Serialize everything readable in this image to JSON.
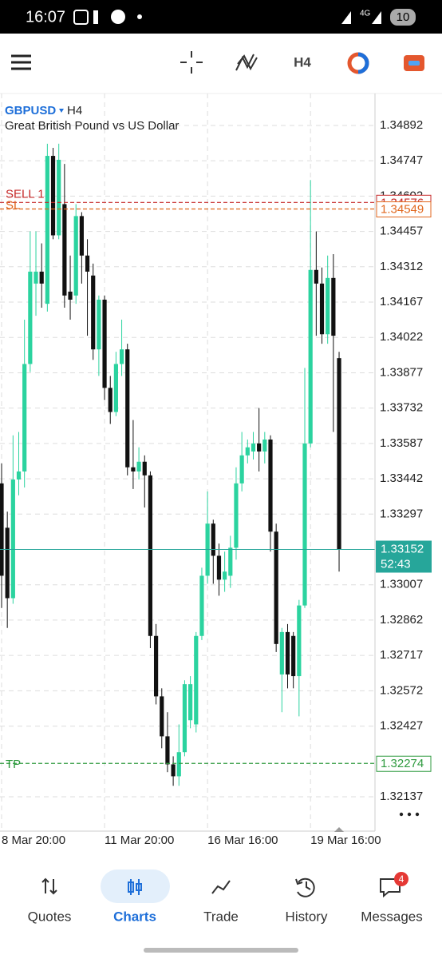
{
  "status_bar": {
    "time": "16:07",
    "network": "4G",
    "battery": 10
  },
  "toolbar": {
    "timeframe": "H4"
  },
  "chart_data": {
    "type": "candlestick",
    "symbol": "GBPUSD",
    "timeframe": "H4",
    "subtitle": "Great British Pound vs US Dollar",
    "categories": [
      "8 Mar 20:00",
      null,
      null,
      null,
      null,
      null,
      null,
      null,
      null,
      null,
      null,
      null,
      null,
      null,
      null,
      null,
      null,
      null,
      "11 Mar 20:00",
      null,
      null,
      null,
      null,
      null,
      null,
      null,
      null,
      null,
      null,
      null,
      null,
      null,
      null,
      null,
      null,
      null,
      "16 Mar 16:00",
      null,
      null,
      null,
      null,
      null,
      null,
      null,
      null,
      null,
      null,
      null,
      null,
      null,
      null,
      null,
      null,
      null,
      "19 Mar 16:00",
      null,
      null,
      null,
      null,
      null
    ],
    "open": [
      1.33423,
      1.33241,
      1.32952,
      1.33439,
      1.33472,
      1.33913,
      1.34243,
      1.34292,
      1.3416,
      1.34767,
      1.34441,
      1.34569,
      1.3421,
      1.34194,
      1.3452,
      1.34358,
      1.34276,
      1.33973,
      1.34177,
      1.33815,
      1.33716,
      1.33913,
      1.33973,
      1.33489,
      1.33472,
      1.33512,
      1.33456,
      1.32797,
      1.32549,
      1.32385,
      1.3227,
      1.32221,
      1.3232,
      1.32451,
      1.32434,
      1.32797,
      1.33044,
      1.33258,
      1.33126,
      1.33028,
      1.33044,
      1.33159,
      1.33423,
      1.33538,
      1.33554,
      1.33587,
      1.33554,
      1.33603,
      1.33225,
      1.32639,
      1.32813,
      1.32797,
      1.32632,
      1.32922,
      1.33587,
      1.34299,
      1.34243,
      1.34035,
      1.34266,
      1.33937
    ],
    "high": [
      1.33505,
      1.33307,
      1.3362,
      1.33634,
      1.34095,
      1.34457,
      1.34457,
      1.34408,
      1.34817,
      1.348,
      1.34817,
      1.34734,
      1.34358,
      1.34569,
      1.34536,
      1.34425,
      1.34325,
      1.34194,
      1.34194,
      1.33864,
      1.33963,
      1.34095,
      1.33996,
      1.33683,
      1.33571,
      1.33538,
      1.33472,
      1.32846,
      1.32582,
      1.32484,
      1.32303,
      1.32434,
      1.32615,
      1.32632,
      1.32813,
      1.33077,
      1.3339,
      1.33274,
      1.33176,
      1.33143,
      1.33208,
      1.33489,
      1.33634,
      1.33603,
      1.33634,
      1.33732,
      1.33634,
      1.3362,
      1.33258,
      1.3283,
      1.32846,
      1.32813,
      1.32945,
      1.33897,
      1.34668,
      1.34457,
      1.34309,
      1.34358,
      1.34364,
      1.33963
    ],
    "low": [
      1.32912,
      1.3283,
      1.32929,
      1.33374,
      1.33406,
      1.3388,
      1.34111,
      1.34144,
      1.34128,
      1.34425,
      1.34425,
      1.34144,
      1.34095,
      1.3416,
      1.34243,
      1.34029,
      1.3393,
      1.33864,
      1.33765,
      1.33667,
      1.33699,
      1.33864,
      1.33456,
      1.334,
      1.33439,
      1.33324,
      1.32747,
      1.32516,
      1.32336,
      1.32238,
      1.32182,
      1.32182,
      1.32303,
      1.32418,
      1.32401,
      1.3278,
      1.33011,
      1.33011,
      1.32962,
      1.32978,
      1.32994,
      1.3311,
      1.3339,
      1.33505,
      1.33521,
      1.33472,
      1.33505,
      1.33143,
      1.32731,
      1.32484,
      1.32582,
      1.32582,
      1.32467,
      1.32912,
      1.33571,
      1.34029,
      1.33996,
      1.33996,
      1.33634,
      1.33061
    ],
    "close": [
      1.33044,
      1.32952,
      1.33439,
      1.33472,
      1.33913,
      1.34292,
      1.34292,
      1.34243,
      1.34767,
      1.34441,
      1.34751,
      1.34194,
      1.34177,
      1.3452,
      1.34358,
      1.34292,
      1.33973,
      1.34177,
      1.33815,
      1.33716,
      1.33913,
      1.33973,
      1.33489,
      1.33472,
      1.33512,
      1.33456,
      1.32797,
      1.32549,
      1.32385,
      1.3227,
      1.32221,
      1.3232,
      1.32599,
      1.32599,
      1.32797,
      1.33044,
      1.33258,
      1.33126,
      1.33028,
      1.33061,
      1.33159,
      1.33423,
      1.33538,
      1.33571,
      1.33587,
      1.33554,
      1.33603,
      1.33225,
      1.32764,
      1.32813,
      1.32639,
      1.32632,
      1.32922,
      1.33587,
      1.34299,
      1.34243,
      1.34035,
      1.34266,
      1.34029,
      1.33152
    ],
    "up_color": "#2bd39f",
    "down_color": "#111111",
    "ylim": [
      1.31996,
      1.35023
    ],
    "yticks": [
      1.34892,
      1.34747,
      1.34602,
      1.34457,
      1.34312,
      1.34167,
      1.34022,
      1.33877,
      1.33732,
      1.33587,
      1.33442,
      1.33297,
      1.33007,
      1.32862,
      1.32717,
      1.32572,
      1.32427,
      1.32137
    ],
    "grid": true,
    "price_lines": [
      {
        "label": "SELL 1",
        "value": 1.34576,
        "color": "#c62828"
      },
      {
        "label": "SL",
        "value": 1.34549,
        "color": "#e0661c"
      },
      {
        "label": "TP",
        "value": 1.32274,
        "color": "#2e9a3e"
      }
    ],
    "current_price": {
      "value": 1.33152,
      "countdown": "52:43",
      "color": "#26a69a"
    }
  },
  "nav": {
    "items": [
      {
        "label": "Quotes"
      },
      {
        "label": "Charts"
      },
      {
        "label": "Trade"
      },
      {
        "label": "History"
      },
      {
        "label": "Messages"
      }
    ],
    "active": 1,
    "badge": 4
  }
}
